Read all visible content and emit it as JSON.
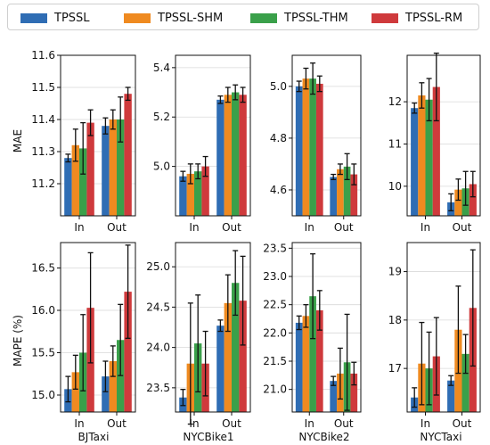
{
  "colors": {
    "TPSSL": "#2f6db4",
    "TPSSL-SHM": "#ef8a20",
    "TPSSL-THM": "#3aa04a",
    "TPSSL-RM": "#cf3a3c",
    "error_bar": "#111111"
  },
  "legend": [
    "TPSSL",
    "TPSSL-SHM",
    "TPSSL-THM",
    "TPSSL-RM"
  ],
  "row_labels": [
    "MAE",
    "MAPE (%)"
  ],
  "column_labels": [
    "BJTaxi",
    "NYCBike1",
    "NYCBike2",
    "NYCTaxi"
  ],
  "chart_data": [
    {
      "type": "bar",
      "row": 0,
      "col": 0,
      "ylabel": "MAE",
      "xlabel": "",
      "categories": [
        "In",
        "Out"
      ],
      "ylim": [
        11.1,
        11.6
      ],
      "yticks": [
        11.2,
        11.3,
        11.4,
        11.5,
        11.6
      ],
      "grid": true,
      "series": [
        {
          "name": "TPSSL",
          "values": [
            11.28,
            11.38
          ],
          "err": [
            0.012,
            0.025
          ]
        },
        {
          "name": "TPSSL-SHM",
          "values": [
            11.32,
            11.4
          ],
          "err": [
            0.05,
            0.03
          ]
        },
        {
          "name": "TPSSL-THM",
          "values": [
            11.31,
            11.4
          ],
          "err": [
            0.08,
            0.07
          ]
        },
        {
          "name": "TPSSL-RM",
          "values": [
            11.39,
            11.48
          ],
          "err": [
            0.04,
            0.02
          ]
        }
      ]
    },
    {
      "type": "bar",
      "row": 0,
      "col": 1,
      "ylabel": "",
      "xlabel": "",
      "categories": [
        "In",
        "Out"
      ],
      "ylim": [
        4.8,
        5.45
      ],
      "yticks": [
        5.0,
        5.2,
        5.4
      ],
      "grid": true,
      "series": [
        {
          "name": "TPSSL",
          "values": [
            4.96,
            5.27
          ],
          "err": [
            0.02,
            0.015
          ]
        },
        {
          "name": "TPSSL-SHM",
          "values": [
            4.97,
            5.29
          ],
          "err": [
            0.04,
            0.03
          ]
        },
        {
          "name": "TPSSL-THM",
          "values": [
            4.98,
            5.3
          ],
          "err": [
            0.03,
            0.03
          ]
        },
        {
          "name": "TPSSL-RM",
          "values": [
            5.0,
            5.29
          ],
          "err": [
            0.04,
            0.03
          ]
        }
      ]
    },
    {
      "type": "bar",
      "row": 0,
      "col": 2,
      "ylabel": "",
      "xlabel": "",
      "categories": [
        "In",
        "Out"
      ],
      "ylim": [
        4.5,
        5.12
      ],
      "yticks": [
        4.6,
        4.8,
        5.0
      ],
      "grid": true,
      "series": [
        {
          "name": "TPSSL",
          "values": [
            5.0,
            4.65
          ],
          "err": [
            0.02,
            0.01
          ]
        },
        {
          "name": "TPSSL-SHM",
          "values": [
            5.03,
            4.68
          ],
          "err": [
            0.04,
            0.02
          ]
        },
        {
          "name": "TPSSL-THM",
          "values": [
            5.03,
            4.69
          ],
          "err": [
            0.06,
            0.05
          ]
        },
        {
          "name": "TPSSL-RM",
          "values": [
            5.01,
            4.66
          ],
          "err": [
            0.03,
            0.04
          ]
        }
      ]
    },
    {
      "type": "bar",
      "row": 0,
      "col": 3,
      "ylabel": "",
      "xlabel": "",
      "categories": [
        "In",
        "Out"
      ],
      "ylim": [
        9.3,
        13.1
      ],
      "yticks": [
        10,
        11,
        12
      ],
      "grid": true,
      "series": [
        {
          "name": "TPSSL",
          "values": [
            11.85,
            9.62
          ],
          "err": [
            0.12,
            0.2
          ]
        },
        {
          "name": "TPSSL-SHM",
          "values": [
            12.15,
            9.92
          ],
          "err": [
            0.3,
            0.25
          ]
        },
        {
          "name": "TPSSL-THM",
          "values": [
            12.05,
            9.95
          ],
          "err": [
            0.5,
            0.4
          ]
        },
        {
          "name": "TPSSL-RM",
          "values": [
            12.35,
            10.05
          ],
          "err": [
            0.8,
            0.3
          ]
        }
      ]
    },
    {
      "type": "bar",
      "row": 1,
      "col": 0,
      "ylabel": "MAPE (%)",
      "xlabel": "BJTaxi",
      "categories": [
        "In",
        "Out"
      ],
      "ylim": [
        14.8,
        16.8
      ],
      "yticks": [
        15.0,
        15.5,
        16.0,
        16.5
      ],
      "grid": true,
      "series": [
        {
          "name": "TPSSL",
          "values": [
            15.07,
            15.22
          ],
          "err": [
            0.15,
            0.18
          ]
        },
        {
          "name": "TPSSL-SHM",
          "values": [
            15.27,
            15.4
          ],
          "err": [
            0.2,
            0.18
          ]
        },
        {
          "name": "TPSSL-THM",
          "values": [
            15.5,
            15.65
          ],
          "err": [
            0.45,
            0.42
          ]
        },
        {
          "name": "TPSSL-RM",
          "values": [
            16.03,
            16.22
          ],
          "err": [
            0.65,
            0.55
          ]
        }
      ]
    },
    {
      "type": "bar",
      "row": 1,
      "col": 1,
      "ylabel": "",
      "xlabel": "NYCBike1",
      "categories": [
        "In",
        "Out"
      ],
      "ylim": [
        23.2,
        25.3
      ],
      "yticks": [
        23.5,
        24.0,
        24.5,
        25.0
      ],
      "grid": true,
      "series": [
        {
          "name": "TPSSL",
          "values": [
            23.38,
            24.27
          ],
          "err": [
            0.1,
            0.07
          ]
        },
        {
          "name": "TPSSL-SHM",
          "values": [
            23.8,
            24.55
          ],
          "err": [
            0.75,
            0.35
          ]
        },
        {
          "name": "TPSSL-THM",
          "values": [
            24.05,
            24.8
          ],
          "err": [
            0.6,
            0.4
          ]
        },
        {
          "name": "TPSSL-RM",
          "values": [
            23.8,
            24.58
          ],
          "err": [
            0.4,
            0.55
          ]
        }
      ]
    },
    {
      "type": "bar",
      "row": 1,
      "col": 2,
      "ylabel": "",
      "xlabel": "NYCBike2",
      "categories": [
        "In",
        "Out"
      ],
      "ylim": [
        20.6,
        23.6
      ],
      "yticks": [
        21.0,
        21.5,
        22.0,
        22.5,
        23.0,
        23.5
      ],
      "grid": true,
      "series": [
        {
          "name": "TPSSL",
          "values": [
            22.18,
            21.15
          ],
          "err": [
            0.12,
            0.08
          ]
        },
        {
          "name": "TPSSL-SHM",
          "values": [
            22.3,
            21.28
          ],
          "err": [
            0.2,
            0.45
          ]
        },
        {
          "name": "TPSSL-THM",
          "values": [
            22.65,
            21.48
          ],
          "err": [
            0.75,
            0.85
          ]
        },
        {
          "name": "TPSSL-RM",
          "values": [
            22.4,
            21.28
          ],
          "err": [
            0.35,
            0.2
          ]
        }
      ]
    },
    {
      "type": "bar",
      "row": 1,
      "col": 3,
      "ylabel": "",
      "xlabel": "NYCTaxi",
      "categories": [
        "In",
        "Out"
      ],
      "ylim": [
        16.1,
        19.6
      ],
      "yticks": [
        17,
        18,
        19
      ],
      "grid": true,
      "series": [
        {
          "name": "TPSSL",
          "values": [
            16.4,
            16.75
          ],
          "err": [
            0.2,
            0.1
          ]
        },
        {
          "name": "TPSSL-SHM",
          "values": [
            17.1,
            17.8
          ],
          "err": [
            0.85,
            0.9
          ]
        },
        {
          "name": "TPSSL-THM",
          "values": [
            17.0,
            17.3
          ],
          "err": [
            0.75,
            0.4
          ]
        },
        {
          "name": "TPSSL-RM",
          "values": [
            17.25,
            18.25
          ],
          "err": [
            0.8,
            1.2
          ]
        }
      ]
    }
  ]
}
